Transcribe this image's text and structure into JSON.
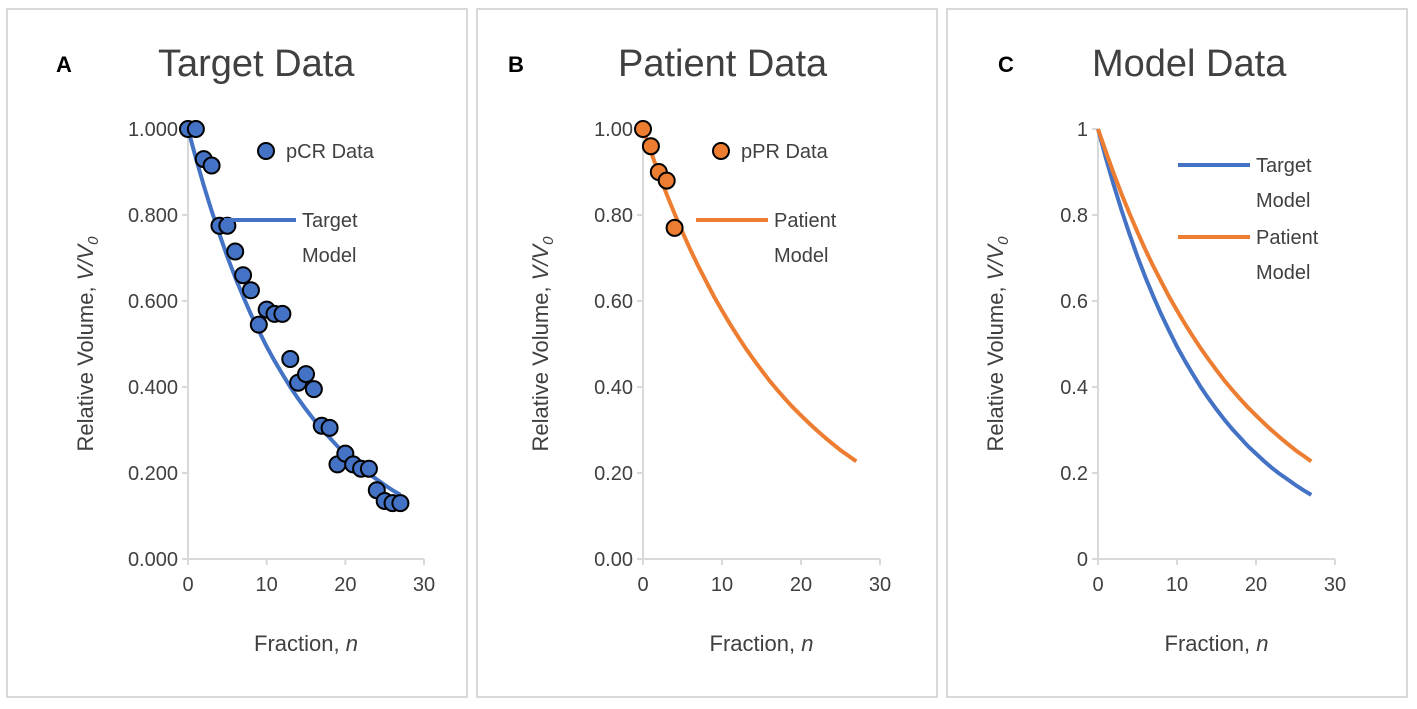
{
  "colors": {
    "blue": "#4472c4",
    "orange": "#ed7d31",
    "axis": "#d9d9d9",
    "text": "#404040"
  },
  "chart_data": [
    {
      "panel": "A",
      "type": "scatter",
      "title": "Target Data",
      "xlabel": "Fraction, ",
      "xlabel_var": "n",
      "ylabel": "Relative Volume, ",
      "ylabel_var": "V/V",
      "ylabel_sub": "0",
      "xlim": [
        0,
        30
      ],
      "ylim": [
        0,
        1
      ],
      "xticks": [
        0,
        10,
        20,
        30
      ],
      "xtick_labels": [
        "0",
        "10",
        "20",
        "30"
      ],
      "yticks": [
        0,
        0.2,
        0.4,
        0.6,
        0.8,
        1.0
      ],
      "ytick_labels": [
        "0.000",
        "0.200",
        "0.400",
        "0.600",
        "0.800",
        "1.000"
      ],
      "legend_position": "top-right",
      "series": [
        {
          "name": "pCR Data",
          "kind": "points",
          "color": "#4472c4",
          "x": [
            0,
            1,
            2,
            3,
            4,
            5,
            6,
            7,
            8,
            9,
            10,
            11,
            12,
            13,
            14,
            15,
            16,
            17,
            18,
            19,
            20,
            21,
            22,
            23,
            24,
            25,
            26,
            27
          ],
          "y": [
            1.0,
            1.0,
            0.93,
            0.915,
            0.775,
            0.775,
            0.715,
            0.66,
            0.625,
            0.545,
            0.58,
            0.57,
            0.57,
            0.465,
            0.41,
            0.43,
            0.395,
            0.31,
            0.305,
            0.22,
            0.245,
            0.22,
            0.21,
            0.21,
            0.16,
            0.135,
            0.13,
            0.13
          ]
        },
        {
          "name": "Target Model",
          "name_lines": [
            "Target",
            "Model"
          ],
          "kind": "line",
          "color": "#4472c4",
          "x": [
            0,
            1,
            2,
            3,
            4,
            5,
            6,
            7,
            8,
            9,
            10,
            11,
            12,
            13,
            14,
            15,
            16,
            17,
            18,
            19,
            20,
            21,
            22,
            23,
            24,
            25,
            26,
            27
          ],
          "y": [
            1.0,
            0.932,
            0.869,
            0.81,
            0.755,
            0.703,
            0.655,
            0.611,
            0.569,
            0.531,
            0.494,
            0.461,
            0.43,
            0.4,
            0.373,
            0.348,
            0.324,
            0.302,
            0.282,
            0.262,
            0.245,
            0.228,
            0.212,
            0.198,
            0.185,
            0.172,
            0.16,
            0.149
          ]
        }
      ]
    },
    {
      "panel": "B",
      "type": "scatter",
      "title": "Patient Data",
      "xlabel": "Fraction, ",
      "xlabel_var": "n",
      "ylabel": "Relative Volume, ",
      "ylabel_var": "V/V",
      "ylabel_sub": "0",
      "xlim": [
        0,
        30
      ],
      "ylim": [
        0,
        1
      ],
      "xticks": [
        0,
        10,
        20,
        30
      ],
      "xtick_labels": [
        "0",
        "10",
        "20",
        "30"
      ],
      "yticks": [
        0,
        0.2,
        0.4,
        0.6,
        0.8,
        1.0
      ],
      "ytick_labels": [
        "0.00",
        "0.20",
        "0.40",
        "0.60",
        "0.80",
        "1.00"
      ],
      "legend_position": "top-right",
      "series": [
        {
          "name": "pPR Data",
          "kind": "points",
          "color": "#ed7d31",
          "x": [
            0,
            1,
            2,
            3,
            4
          ],
          "y": [
            1.0,
            0.96,
            0.9,
            0.88,
            0.77
          ]
        },
        {
          "name": "Patient Model",
          "name_lines": [
            "Patient",
            "Model"
          ],
          "kind": "line",
          "color": "#ed7d31",
          "x": [
            0,
            1,
            2,
            3,
            4,
            5,
            6,
            7,
            8,
            9,
            10,
            11,
            12,
            13,
            14,
            15,
            16,
            17,
            18,
            19,
            20,
            21,
            22,
            23,
            24,
            25,
            26,
            27
          ],
          "y": [
            1.0,
            0.947,
            0.896,
            0.848,
            0.803,
            0.76,
            0.719,
            0.681,
            0.645,
            0.61,
            0.578,
            0.547,
            0.518,
            0.49,
            0.464,
            0.439,
            0.415,
            0.393,
            0.372,
            0.352,
            0.334,
            0.316,
            0.299,
            0.283,
            0.268,
            0.253,
            0.24,
            0.227
          ]
        }
      ]
    },
    {
      "panel": "C",
      "type": "line",
      "title": "Model Data",
      "xlabel": "Fraction, ",
      "xlabel_var": "n",
      "ylabel": "Relative Volume, ",
      "ylabel_var": "V/V",
      "ylabel_sub": "0",
      "xlim": [
        0,
        30
      ],
      "ylim": [
        0,
        1
      ],
      "xticks": [
        0,
        10,
        20,
        30
      ],
      "xtick_labels": [
        "0",
        "10",
        "20",
        "30"
      ],
      "yticks": [
        0,
        0.2,
        0.4,
        0.6,
        0.8,
        1.0
      ],
      "ytick_labels": [
        "0",
        "0.2",
        "0.4",
        "0.6",
        "0.8",
        "1"
      ],
      "legend_position": "top-right",
      "series": [
        {
          "name": "Target Model",
          "name_lines": [
            "Target",
            "Model"
          ],
          "kind": "line",
          "color": "#4472c4",
          "x": [
            0,
            1,
            2,
            3,
            4,
            5,
            6,
            7,
            8,
            9,
            10,
            11,
            12,
            13,
            14,
            15,
            16,
            17,
            18,
            19,
            20,
            21,
            22,
            23,
            24,
            25,
            26,
            27
          ],
          "y": [
            1.0,
            0.932,
            0.869,
            0.81,
            0.755,
            0.703,
            0.655,
            0.611,
            0.569,
            0.531,
            0.494,
            0.461,
            0.43,
            0.4,
            0.373,
            0.348,
            0.324,
            0.302,
            0.282,
            0.262,
            0.245,
            0.228,
            0.212,
            0.198,
            0.185,
            0.172,
            0.16,
            0.149
          ]
        },
        {
          "name": "Patient Model",
          "name_lines": [
            "Patient",
            "Model"
          ],
          "kind": "line",
          "color": "#ed7d31",
          "x": [
            0,
            1,
            2,
            3,
            4,
            5,
            6,
            7,
            8,
            9,
            10,
            11,
            12,
            13,
            14,
            15,
            16,
            17,
            18,
            19,
            20,
            21,
            22,
            23,
            24,
            25,
            26,
            27
          ],
          "y": [
            1.0,
            0.947,
            0.896,
            0.848,
            0.803,
            0.76,
            0.719,
            0.681,
            0.645,
            0.61,
            0.578,
            0.547,
            0.518,
            0.49,
            0.464,
            0.439,
            0.415,
            0.393,
            0.372,
            0.352,
            0.334,
            0.316,
            0.299,
            0.283,
            0.268,
            0.253,
            0.24,
            0.227
          ]
        }
      ]
    }
  ]
}
